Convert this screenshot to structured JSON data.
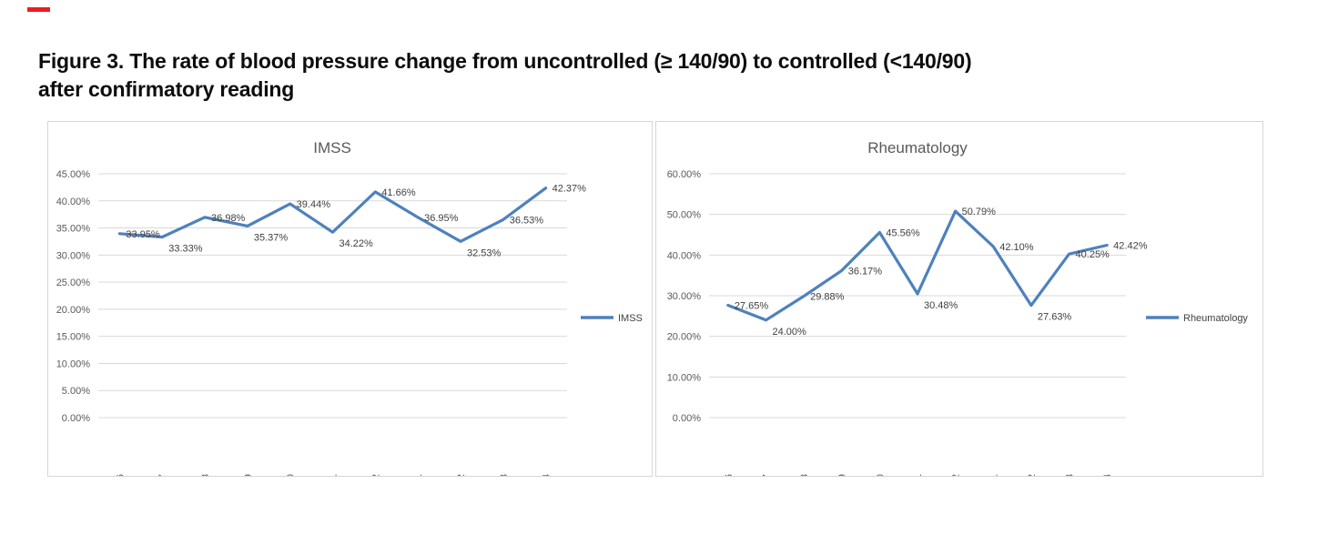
{
  "figure_title": {
    "line1": "Figure 3. The rate of blood pressure change from uncontrolled (≥ 140/90) to controlled (<140/90)",
    "line2": "after confirmatory reading"
  },
  "colors": {
    "line_blue": "#4E81BD",
    "gridline": "#d9d9d9",
    "axis_text": "#595959",
    "red_mark": "#ED1C24",
    "panel_border": "#d6d6d6"
  },
  "chart_data": [
    {
      "type": "line",
      "title": "IMSS",
      "legend": "IMSS",
      "legend_position": "right-middle",
      "grid": true,
      "categories": [
        "2022-06",
        "2022-07",
        "2022-08",
        "2022-09",
        "2022-10",
        "2022-11",
        "2022-12",
        "2023-01",
        "2023-02",
        "2023-03",
        "2023-04"
      ],
      "values": [
        33.95,
        33.33,
        36.98,
        35.37,
        39.44,
        34.22,
        41.66,
        36.95,
        32.53,
        36.53,
        42.37
      ],
      "data_labels": [
        "33.95%",
        "33.33%",
        "36.98%",
        "35.37%",
        "39.44%",
        "34.22%",
        "41.66%",
        "36.95%",
        "32.53%",
        "36.53%",
        "42.37%"
      ],
      "ylim": [
        0,
        45
      ],
      "ytick_step": 5,
      "ytick_labels": [
        "0.00%",
        "5.00%",
        "10.00%",
        "15.00%",
        "20.00%",
        "25.00%",
        "30.00%",
        "35.00%",
        "40.00%",
        "45.00%"
      ],
      "line_color": "#4E81BD"
    },
    {
      "type": "line",
      "title": "Rheumatology",
      "legend": "Rheumatology",
      "legend_position": "right-middle",
      "grid": true,
      "categories": [
        "2022-06",
        "2022-07",
        "2022-08",
        "2022-09",
        "2022-10",
        "2022-11",
        "2022-12",
        "2023-01",
        "2023-02",
        "2023-03",
        "2023-04"
      ],
      "values": [
        27.65,
        24.0,
        29.88,
        36.17,
        45.56,
        30.48,
        50.79,
        42.1,
        27.63,
        40.25,
        42.42
      ],
      "data_labels": [
        "27.65%",
        "24.00%",
        "29.88%",
        "36.17%",
        "45.56%",
        "30.48%",
        "50.79%",
        "42.10%",
        "27.63%",
        "40.25%",
        "42.42%"
      ],
      "ylim": [
        0,
        60
      ],
      "ytick_step": 10,
      "ytick_labels": [
        "0.00%",
        "10.00%",
        "20.00%",
        "30.00%",
        "40.00%",
        "50.00%",
        "60.00%"
      ],
      "line_color": "#4E81BD"
    }
  ]
}
